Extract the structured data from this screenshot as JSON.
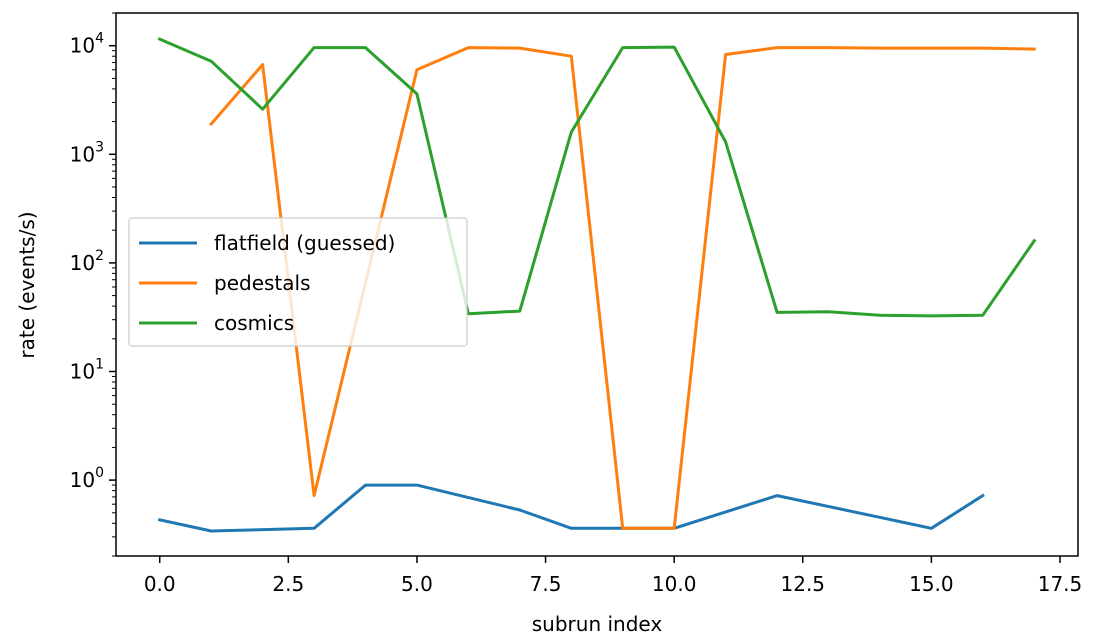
{
  "chart_data": {
    "type": "line",
    "xlabel": "subrun index",
    "ylabel": "rate (events/s)",
    "yscale": "log",
    "xlim": [
      -0.85,
      17.85
    ],
    "ylim": [
      0.2,
      20000
    ],
    "x_ticks": [
      0.0,
      2.5,
      5.0,
      7.5,
      10.0,
      12.5,
      15.0,
      17.5
    ],
    "x_tick_labels": [
      "0.0",
      "2.5",
      "5.0",
      "7.5",
      "10.0",
      "12.5",
      "15.0",
      "17.5"
    ],
    "y_ticks": [
      {
        "value": 1,
        "base": "10",
        "exp": "0"
      },
      {
        "value": 10,
        "base": "10",
        "exp": "1"
      },
      {
        "value": 100,
        "base": "10",
        "exp": "2"
      },
      {
        "value": 1000,
        "base": "10",
        "exp": "3"
      },
      {
        "value": 10000,
        "base": "10",
        "exp": "4"
      }
    ],
    "grid": false,
    "legend_position": "center-left",
    "series": [
      {
        "name": "flatfield (guessed)",
        "color": "#1f77b4",
        "x": [
          0,
          1,
          3,
          4,
          5,
          7,
          8,
          9,
          10,
          12,
          15,
          16
        ],
        "y": [
          0.43,
          0.34,
          0.36,
          0.9,
          0.9,
          0.53,
          0.36,
          0.36,
          0.36,
          0.72,
          0.36,
          0.72
        ]
      },
      {
        "name": "pedestals",
        "color": "#ff7f0e",
        "x": [
          1,
          2,
          3,
          5,
          6,
          7,
          8,
          9,
          10,
          11,
          12,
          13,
          14,
          15,
          16,
          17
        ],
        "y": [
          1900,
          6700,
          0.72,
          6000,
          9600,
          9500,
          8000,
          0.36,
          0.36,
          8300,
          9600,
          9600,
          9500,
          9500,
          9500,
          9300
        ]
      },
      {
        "name": "cosmics",
        "color": "#2ca02c",
        "x": [
          0,
          1,
          2,
          3,
          4,
          5,
          6,
          7,
          8,
          9,
          10,
          11,
          12,
          13,
          14,
          15,
          16,
          17
        ],
        "y": [
          11500,
          7200,
          2600,
          9600,
          9600,
          3600,
          34,
          36,
          1600,
          9600,
          9700,
          1300,
          35,
          35.5,
          33,
          32.5,
          33,
          160
        ]
      }
    ]
  }
}
